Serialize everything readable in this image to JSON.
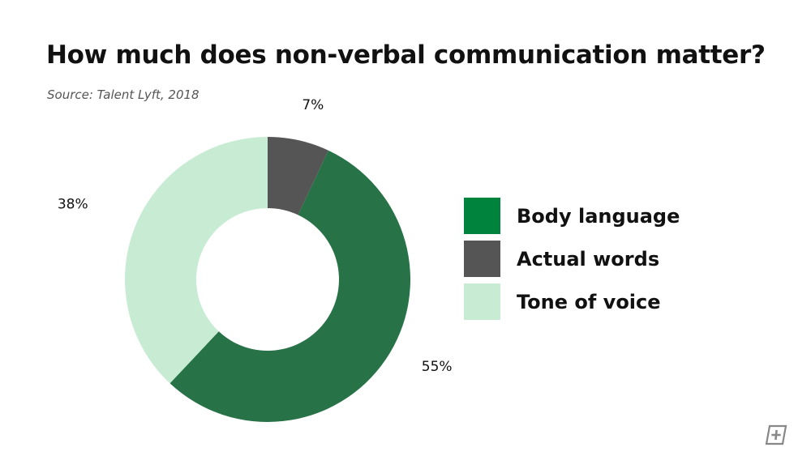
{
  "header": {
    "title": "How much does non-verbal communication matter?",
    "source": "Source: Talent Lyft, 2018"
  },
  "chart_data": {
    "type": "pie",
    "style": "donut",
    "title": "How much does non-verbal communication matter?",
    "subtitle": "Source: Talent Lyft, 2018",
    "legend_position": "right",
    "slices": [
      {
        "label": "Actual words",
        "value": 7,
        "value_label": "7%",
        "color": "#555555"
      },
      {
        "label": "Body language",
        "value": 55,
        "value_label": "55%",
        "color": "#277247"
      },
      {
        "label": "Tone of voice",
        "value": 38,
        "value_label": "38%",
        "color": "#c7ecd3"
      }
    ]
  },
  "legend": {
    "items": [
      {
        "label": "Body language",
        "color": "#00843d"
      },
      {
        "label": "Actual words",
        "color": "#555555"
      },
      {
        "label": "Tone of voice",
        "color": "#c7ecd3"
      }
    ]
  },
  "logo": {
    "icon": "plus-square-icon",
    "color": "#888888"
  }
}
